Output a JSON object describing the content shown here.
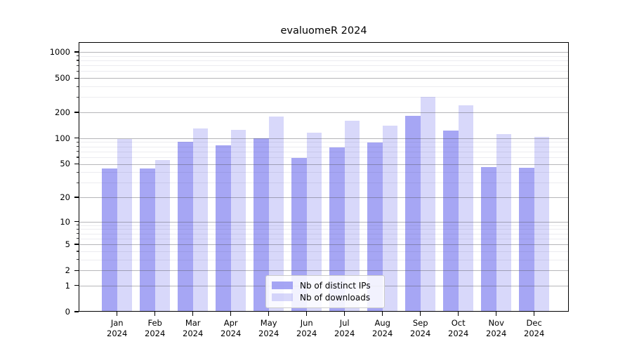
{
  "chart_data": {
    "type": "bar",
    "title": "evaluomeR 2024",
    "categories": [
      "Jan 2024",
      "Feb 2024",
      "Mar 2024",
      "Apr 2024",
      "May 2024",
      "Jun 2024",
      "Jul 2024",
      "Aug 2024",
      "Sep 2024",
      "Oct 2024",
      "Nov 2024",
      "Dec 2024"
    ],
    "series": [
      {
        "name": "Nb of distinct IPs",
        "color": "#8888F0BF",
        "values": [
          44,
          44,
          91,
          83,
          100,
          59,
          78,
          89,
          182,
          123,
          46,
          45
        ]
      },
      {
        "name": "Nb of downloads",
        "color": "#8888F054",
        "values": [
          98,
          55,
          131,
          124,
          178,
          116,
          159,
          139,
          302,
          241,
          112,
          103
        ]
      }
    ],
    "y_axis": {
      "scale": "log1p",
      "ticks": [
        0,
        1,
        2,
        5,
        10,
        20,
        50,
        100,
        200,
        500,
        1000
      ],
      "minor_ticks": [
        3,
        4,
        6,
        7,
        8,
        9,
        30,
        40,
        60,
        70,
        80,
        90,
        300,
        400,
        600,
        700,
        800,
        900
      ],
      "ylim": [
        0,
        1300
      ]
    },
    "xlabel": "",
    "ylabel": "",
    "grid": true,
    "legend_position": "bottom-center-inside"
  }
}
